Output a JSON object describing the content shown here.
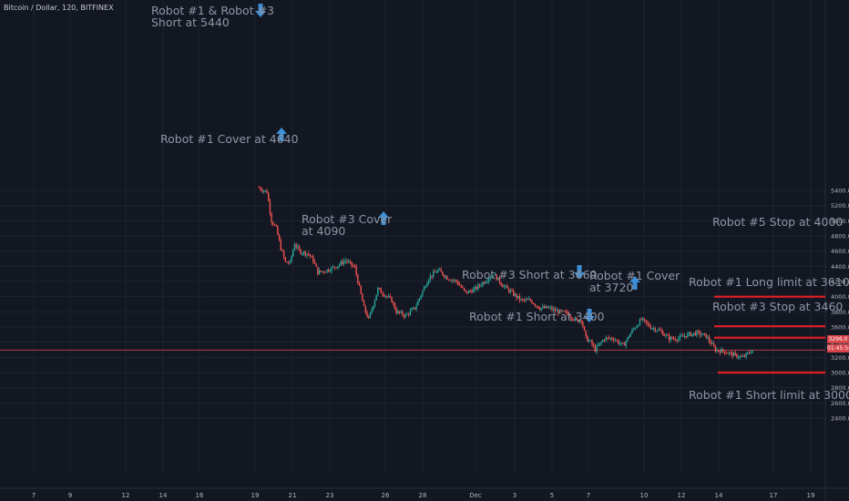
{
  "title": "Bitcoin / Dollar, 120, BITFINEX",
  "current_price": {
    "label": "3296.0",
    "countdown": "01:45:54",
    "value": 3296
  },
  "colors": {
    "background": "#131722",
    "grid": "#1f2330",
    "up": "#26a69a",
    "down": "#ef5350",
    "arrow": "#3d8fd6",
    "level": "#e41e26",
    "price_line": "#c2404a",
    "text": "#8f95a3",
    "axis_text": "#b2b5be"
  },
  "chart_data": {
    "type": "candlestick",
    "title": "Bitcoin / Dollar, 120, BITFINEX",
    "ylim": [
      2300,
      5650
    ],
    "y_ticks": [
      2400,
      2600,
      2800,
      3000,
      3200,
      3400,
      3600,
      3800,
      4000,
      4200,
      4400,
      4600,
      4800,
      5000,
      5200,
      5400
    ],
    "y_tick_labels": [
      "2400.0",
      "2600.0",
      "2800.0",
      "3000.0",
      "3200.0",
      "3400.0",
      "3600.0",
      "3800.0",
      "4000.0",
      "4200.0",
      "4400.0",
      "4600.0",
      "4800.0",
      "5000.0",
      "5200.0",
      "5400.0"
    ],
    "x_ticks": [
      "7",
      "9",
      "12",
      "14",
      "16",
      "19",
      "21",
      "23",
      "26",
      "28",
      "Dec",
      "3",
      "5",
      "7",
      "10",
      "12",
      "14",
      "17",
      "19"
    ],
    "price_path": [
      [
        "Nov 19 06:00",
        5440
      ],
      [
        "Nov 19 18:00",
        5380
      ],
      [
        "Nov 20 00:00",
        5000
      ],
      [
        "Nov 20 06:00",
        4900
      ],
      [
        "Nov 20 12:00",
        4640
      ],
      [
        "Nov 20 18:00",
        4450
      ],
      [
        "Nov 21 00:00",
        4450
      ],
      [
        "Nov 21 06:00",
        4700
      ],
      [
        "Nov 21 12:00",
        4600
      ],
      [
        "Nov 22 00:00",
        4560
      ],
      [
        "Nov 22 06:00",
        4480
      ],
      [
        "Nov 22 12:00",
        4320
      ],
      [
        "Nov 23 00:00",
        4350
      ],
      [
        "Nov 23 12:00",
        4400
      ],
      [
        "Nov 24 00:00",
        4480
      ],
      [
        "Nov 24 12:00",
        4380
      ],
      [
        "Nov 25 00:00",
        3850
      ],
      [
        "Nov 25 06:00",
        3700
      ],
      [
        "Nov 25 12:00",
        3900
      ],
      [
        "Nov 25 18:00",
        4100
      ],
      [
        "Nov 26 06:00",
        4000
      ],
      [
        "Nov 26 12:00",
        3950
      ],
      [
        "Nov 26 18:00",
        3800
      ],
      [
        "Nov 27 06:00",
        3750
      ],
      [
        "Nov 27 18:00",
        3850
      ],
      [
        "Nov 28 12:00",
        4250
      ],
      [
        "Nov 29 00:00",
        4350
      ],
      [
        "Nov 29 12:00",
        4250
      ],
      [
        "Nov 30 00:00",
        4200
      ],
      [
        "Nov 30 12:00",
        4050
      ],
      [
        "Dec 01 00:00",
        4100
      ],
      [
        "Dec 01 12:00",
        4200
      ],
      [
        "Dec 02 00:00",
        4300
      ],
      [
        "Dec 02 12:00",
        4150
      ],
      [
        "Dec 03 00:00",
        4050
      ],
      [
        "Dec 03 12:00",
        3950
      ],
      [
        "Dec 04 00:00",
        3950
      ],
      [
        "Dec 04 12:00",
        3850
      ],
      [
        "Dec 05 00:00",
        3850
      ],
      [
        "Dec 05 12:00",
        3800
      ],
      [
        "Dec 06 00:00",
        3780
      ],
      [
        "Dec 06 12:00",
        3680
      ],
      [
        "Dec 06 18:00",
        3700
      ],
      [
        "Dec 07 00:00",
        3450
      ],
      [
        "Dec 07 06:00",
        3400
      ],
      [
        "Dec 07 12:00",
        3300
      ],
      [
        "Dec 08 00:00",
        3450
      ],
      [
        "Dec 08 12:00",
        3450
      ],
      [
        "Dec 09 00:00",
        3350
      ],
      [
        "Dec 09 12:00",
        3550
      ],
      [
        "Dec 10 00:00",
        3700
      ],
      [
        "Dec 10 12:00",
        3600
      ],
      [
        "Dec 11 00:00",
        3550
      ],
      [
        "Dec 11 12:00",
        3450
      ],
      [
        "Dec 12 00:00",
        3450
      ],
      [
        "Dec 12 12:00",
        3500
      ],
      [
        "Dec 13 00:00",
        3520
      ],
      [
        "Dec 13 12:00",
        3480
      ],
      [
        "Dec 14 00:00",
        3300
      ],
      [
        "Dec 14 12:00",
        3280
      ],
      [
        "Dec 15 00:00",
        3230
      ],
      [
        "Dec 15 12:00",
        3200
      ],
      [
        "Dec 16 00:00",
        3296
      ]
    ],
    "levels": [
      {
        "label": "Robot #5 Stop at 4000",
        "value": 4000
      },
      {
        "label": "Robot #1 Long limit at 3610",
        "value": 3610
      },
      {
        "label": "Robot #3 Stop at 3460",
        "value": 3460
      },
      {
        "label": "Robot #1 Short limit at 3000",
        "value": 3000
      }
    ],
    "signals": [
      {
        "label": "Robot #1 & Robot #3\nShort at 5440",
        "time": "Nov 19 06:00",
        "price": 5440,
        "direction": "down"
      },
      {
        "label": "Robot #1 Cover at 4640",
        "time": "Nov 20 12:00",
        "price": 4640,
        "direction": "up"
      },
      {
        "label": "Robot #3 Cover\nat 4090",
        "time": "Nov 25 18:00",
        "price": 4090,
        "direction": "up"
      },
      {
        "label": "Robot #3 Short at 3660",
        "time": "Dec 06 18:00",
        "price": 3660,
        "direction": "down"
      },
      {
        "label": "Robot #1 Cover\nat 3720",
        "time": "Dec 10 00:00",
        "price": 3720,
        "direction": "up"
      },
      {
        "label": "Robot #1 Short at 3400",
        "time": "Dec 07 06:00",
        "price": 3400,
        "direction": "down"
      }
    ]
  }
}
